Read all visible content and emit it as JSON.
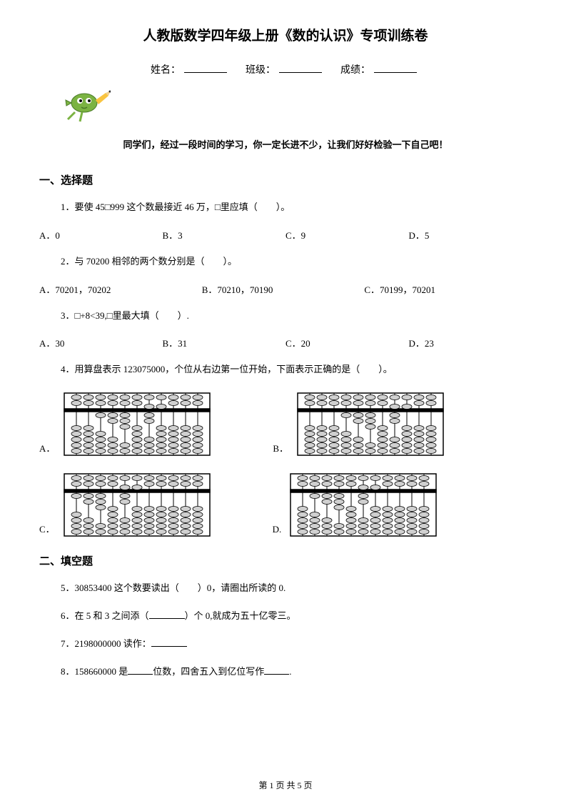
{
  "title": "人教版数学四年级上册《数的认识》专项训练卷",
  "info": {
    "name_label": "姓名：",
    "class_label": "班级：",
    "score_label": "成绩："
  },
  "motivational": "同学们，经过一段时间的学习，你一定长进不少，让我们好好检验一下自己吧！",
  "section1": "一、选择题",
  "q1": {
    "text": "1．要使 45□999 这个数最接近 46 万，□里应填（　　）。",
    "opts": [
      "A．0",
      "B．3",
      "C．9",
      "D．5"
    ]
  },
  "q2": {
    "text": "2．与 70200 相邻的两个数分别是（　　）。",
    "opts": [
      "A．70201，70202",
      "B．70210，70190",
      "C．70199，70201"
    ]
  },
  "q3": {
    "text": "3．□+8<39,□里最大填（　　）.",
    "opts": [
      "A．30",
      "B．31",
      "C．20",
      "D．23"
    ]
  },
  "q4": {
    "text": "4．用算盘表示 123075000，个位从右边第一位开始，下面表示正确的是（　　）。",
    "labels": [
      "A．",
      "B．",
      "C．",
      "D."
    ]
  },
  "section2": "二、填空题",
  "q5": "5．30853400 这个数要读出（　　）0，请圈出所读的 0.",
  "q6": {
    "pre": "6．在 5 和 3 之间添（",
    "post": "）个 0,就成为五十亿零三。"
  },
  "q7": {
    "pre": "7．2198000000 读作：",
    "post": ""
  },
  "q8": {
    "pre": "8．158660000 是",
    "mid": "位数，四舍五入到亿位写作",
    "post": "."
  },
  "footer": "第 1 页 共 5 页",
  "abacus": {
    "rods": 11,
    "frame_color": "#000000",
    "bead_fill": "#d0d0d0",
    "bead_stroke": "#000000"
  }
}
